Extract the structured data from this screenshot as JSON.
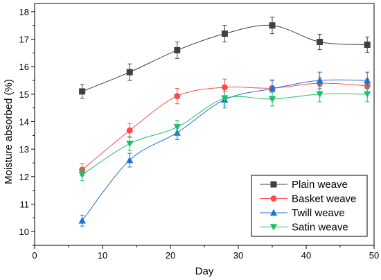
{
  "chart_data": {
    "type": "line",
    "title": "",
    "xlabel": "Day",
    "ylabel": "Moisture absorbed (%)",
    "xlim": [
      0,
      50
    ],
    "ylim": [
      9.5,
      18.3
    ],
    "xticks": [
      0,
      10,
      20,
      30,
      40,
      50
    ],
    "yticks": [
      10,
      11,
      12,
      13,
      14,
      15,
      16,
      17,
      18
    ],
    "grid": false,
    "legend_position": "bottom-right",
    "x": [
      7,
      14,
      21,
      28,
      35,
      42,
      49
    ],
    "series": [
      {
        "name": "Plain weave",
        "color": "#404040",
        "marker": "square",
        "values": [
          15.1,
          15.8,
          16.6,
          17.2,
          17.5,
          16.9,
          16.8
        ],
        "errors": [
          0.25,
          0.3,
          0.3,
          0.3,
          0.3,
          0.28,
          0.28
        ]
      },
      {
        "name": "Basket weave",
        "color": "#ff4a4a",
        "marker": "circle",
        "values": [
          12.25,
          13.68,
          14.93,
          15.25,
          15.22,
          15.4,
          15.3
        ],
        "errors": [
          0.22,
          0.25,
          0.28,
          0.3,
          0.3,
          0.2,
          0.25
        ]
      },
      {
        "name": "Twill weave",
        "color": "#1f6fd6",
        "marker": "triangle-up",
        "values": [
          10.4,
          12.6,
          13.6,
          14.8,
          15.2,
          15.5,
          15.5
        ],
        "errors": [
          0.2,
          0.25,
          0.25,
          0.3,
          0.3,
          0.3,
          0.3
        ]
      },
      {
        "name": "Satin weave",
        "color": "#1cbf6a",
        "marker": "triangle-down",
        "values": [
          12.07,
          13.2,
          13.8,
          14.85,
          14.82,
          15.0,
          15.0
        ],
        "errors": [
          0.22,
          0.25,
          0.25,
          0.25,
          0.25,
          0.28,
          0.28
        ]
      }
    ]
  }
}
